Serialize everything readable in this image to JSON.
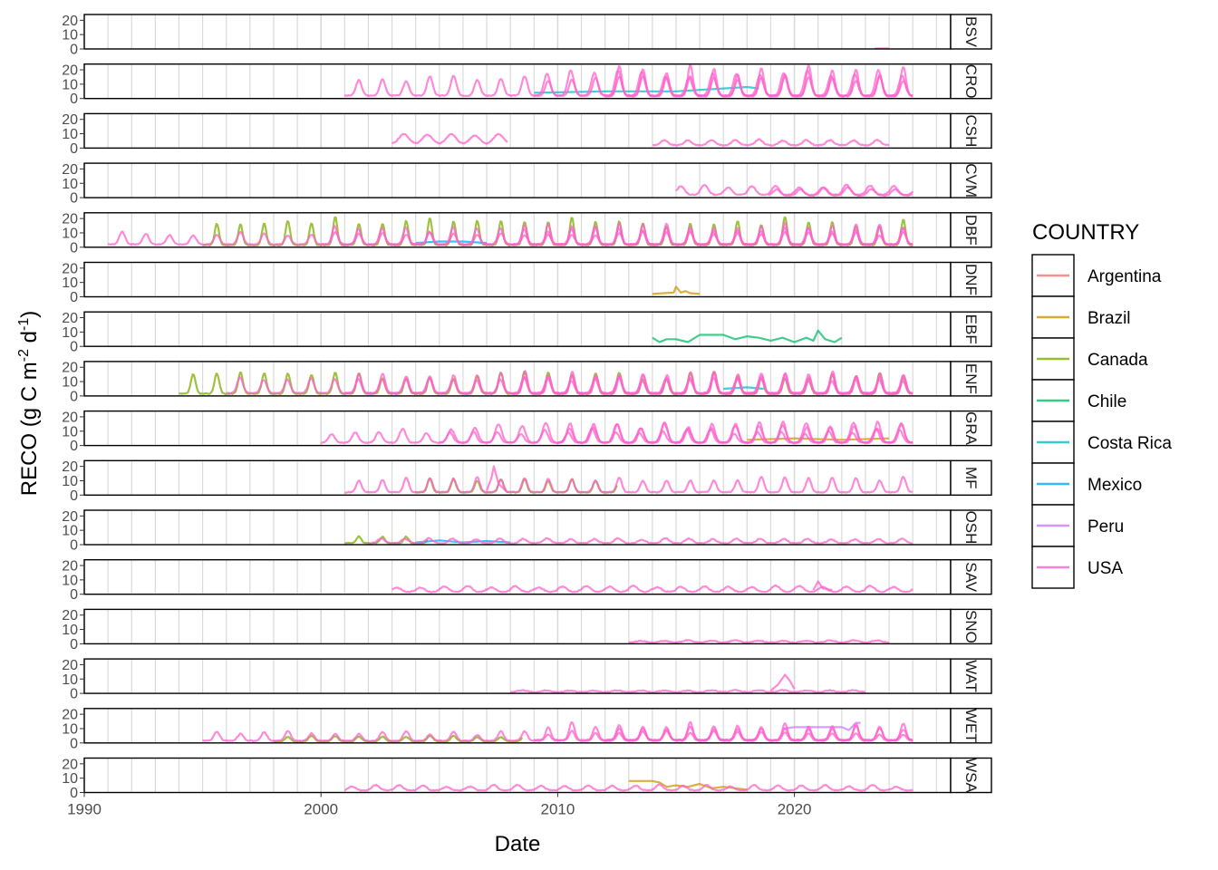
{
  "chart_data": {
    "type": "line",
    "layout": "faceted",
    "xlabel": "Date",
    "ylabel_parts": {
      "main": "RECO (g C m",
      "exp1": "-2",
      "mid": " d",
      "exp2": "-1",
      "end": ")"
    },
    "xlim": [
      1990,
      2026.6
    ],
    "ylim": [
      0,
      24
    ],
    "x_ticks": [
      1990,
      2000,
      2010,
      2020
    ],
    "x_tick_labels": [
      "1990",
      "2000",
      "2010",
      "2020"
    ],
    "y_ticks": [
      0,
      10,
      20
    ],
    "y_tick_labels": [
      "0",
      "10",
      "20"
    ],
    "grid": "vertical",
    "legend": {
      "title": "COUNTRY",
      "position": "right",
      "entries": [
        {
          "name": "Argentina",
          "color": "#F8766D"
        },
        {
          "name": "Brazil",
          "color": "#CD9600"
        },
        {
          "name": "Canada",
          "color": "#7CAE00"
        },
        {
          "name": "Chile",
          "color": "#00BE67"
        },
        {
          "name": "Costa Rica",
          "color": "#00BFC4"
        },
        {
          "name": "Mexico",
          "color": "#00A9FF"
        },
        {
          "name": "Peru",
          "color": "#C77CFF"
        },
        {
          "name": "USA",
          "color": "#FF61CC"
        }
      ]
    },
    "panels": [
      {
        "label": "BSV",
        "series": [
          {
            "country": "USA",
            "points": [
              [
                2023.4,
                0.3
              ],
              [
                2024.0,
                0.3
              ]
            ]
          }
        ]
      },
      {
        "label": "CRO",
        "series": [
          {
            "country": "Costa Rica",
            "points": [
              [
                2009,
                4
              ],
              [
                2012,
                5
              ],
              [
                2015,
                5
              ],
              [
                2016,
                6
              ],
              [
                2017,
                7
              ],
              [
                2018,
                8
              ],
              [
                2018.5,
                7
              ]
            ]
          },
          {
            "country": "USA",
            "seasonal": {
              "start": 2001,
              "end": 2025,
              "base": 2,
              "amp": 10,
              "peak": 0.6,
              "width": 0.12,
              "jitter": 4,
              "seed": 3
            }
          },
          {
            "country": "USA",
            "seasonal": {
              "start": 2009,
              "end": 2025,
              "base": 2,
              "amp": 12,
              "peak": 0.55,
              "width": 0.13,
              "jitter": 6,
              "seed": 7
            }
          },
          {
            "country": "USA",
            "seasonal": {
              "start": 2012,
              "end": 2025,
              "base": 1.5,
              "amp": 14,
              "peak": 0.6,
              "width": 0.11,
              "jitter": 8,
              "seed": 11
            }
          }
        ]
      },
      {
        "label": "CSH",
        "series": [
          {
            "country": "USA",
            "seasonal": {
              "start": 2003,
              "end": 2007.9,
              "base": 3,
              "amp": 5,
              "peak": 0.5,
              "width": 0.2,
              "jitter": 2,
              "seed": 5
            }
          },
          {
            "country": "USA",
            "seasonal": {
              "start": 2014,
              "end": 2024,
              "base": 2,
              "amp": 3,
              "peak": 0.5,
              "width": 0.15,
              "jitter": 1.5,
              "seed": 9
            }
          }
        ]
      },
      {
        "label": "CVM",
        "series": [
          {
            "country": "USA",
            "seasonal": {
              "start": 2015,
              "end": 2025,
              "base": 2,
              "amp": 5,
              "peak": 0.2,
              "width": 0.15,
              "jitter": 2,
              "seed": 13
            }
          },
          {
            "country": "USA",
            "seasonal": {
              "start": 2018.9,
              "end": 2025,
              "base": 1.5,
              "amp": 4,
              "peak": 0.25,
              "width": 0.15,
              "jitter": 2,
              "seed": 17
            }
          }
        ]
      },
      {
        "label": "DBF",
        "series": [
          {
            "country": "Canada",
            "seasonal": {
              "start": 1995,
              "end": 2025,
              "base": 1.5,
              "amp": 13,
              "peak": 0.6,
              "width": 0.09,
              "jitter": 7,
              "seed": 21
            }
          },
          {
            "country": "Mexico",
            "points": [
              [
                2004,
                3
              ],
              [
                2005,
                4
              ],
              [
                2006,
                4
              ],
              [
                2007,
                3
              ]
            ]
          },
          {
            "country": "USA",
            "seasonal": {
              "start": 1991,
              "end": 2025,
              "base": 2,
              "amp": 6,
              "peak": 0.6,
              "width": 0.12,
              "jitter": 3,
              "seed": 23
            }
          },
          {
            "country": "USA",
            "seasonal": {
              "start": 2000,
              "end": 2025,
              "base": 2,
              "amp": 9,
              "peak": 0.58,
              "width": 0.11,
              "jitter": 4,
              "seed": 29
            }
          },
          {
            "country": "USA",
            "seasonal": {
              "start": 2008,
              "end": 2025,
              "base": 2,
              "amp": 11,
              "peak": 0.6,
              "width": 0.1,
              "jitter": 4,
              "seed": 31
            }
          }
        ]
      },
      {
        "label": "DNF",
        "series": [
          {
            "country": "Brazil",
            "points": [
              [
                2014,
                2
              ],
              [
                2014.5,
                2.5
              ],
              [
                2014.9,
                3
              ],
              [
                2015.0,
                7
              ],
              [
                2015.2,
                3
              ],
              [
                2015.4,
                4
              ],
              [
                2015.6,
                2.5
              ],
              [
                2016,
                2
              ]
            ]
          }
        ]
      },
      {
        "label": "EBF",
        "series": [
          {
            "country": "Chile",
            "points": [
              [
                2014,
                6
              ],
              [
                2014.3,
                3
              ],
              [
                2014.6,
                5
              ],
              [
                2015,
                5
              ],
              [
                2015.5,
                3
              ],
              [
                2016,
                8
              ],
              [
                2017,
                8
              ],
              [
                2017.5,
                5
              ],
              [
                2018,
                7
              ],
              [
                2018.5,
                6
              ],
              [
                2019,
                4
              ],
              [
                2019.5,
                6
              ],
              [
                2020,
                3
              ],
              [
                2020.5,
                6
              ],
              [
                2020.8,
                4
              ],
              [
                2021.0,
                11
              ],
              [
                2021.3,
                5
              ],
              [
                2021.7,
                3
              ],
              [
                2022,
                6
              ]
            ]
          }
        ]
      },
      {
        "label": "ENF",
        "series": [
          {
            "country": "Canada",
            "seasonal": {
              "start": 1994,
              "end": 2025,
              "base": 1.5,
              "amp": 9,
              "peak": 0.6,
              "width": 0.1,
              "jitter": 7,
              "seed": 37
            }
          },
          {
            "country": "Costa Rica",
            "points": [
              [
                2017,
                5
              ],
              [
                2018,
                6
              ],
              [
                2018.7,
                5
              ]
            ]
          },
          {
            "country": "USA",
            "seasonal": {
              "start": 1996,
              "end": 2025,
              "base": 2,
              "amp": 8,
              "peak": 0.58,
              "width": 0.12,
              "jitter": 3,
              "seed": 41
            }
          },
          {
            "country": "USA",
            "seasonal": {
              "start": 2001,
              "end": 2025,
              "base": 2,
              "amp": 10,
              "peak": 0.6,
              "width": 0.11,
              "jitter": 5,
              "seed": 43
            }
          },
          {
            "country": "USA",
            "seasonal": {
              "start": 2008,
              "end": 2025,
              "base": 1.5,
              "amp": 11,
              "peak": 0.62,
              "width": 0.1,
              "jitter": 5,
              "seed": 47
            }
          }
        ]
      },
      {
        "label": "GRA",
        "series": [
          {
            "country": "Brazil",
            "points": [
              [
                2018,
                4
              ],
              [
                2020,
                5
              ],
              [
                2022,
                4
              ],
              [
                2024,
                5
              ]
            ]
          },
          {
            "country": "USA",
            "seasonal": {
              "start": 2000,
              "end": 2025,
              "base": 2,
              "amp": 6,
              "peak": 0.45,
              "width": 0.13,
              "jitter": 4,
              "seed": 53
            }
          },
          {
            "country": "USA",
            "seasonal": {
              "start": 2005,
              "end": 2025,
              "base": 2,
              "amp": 9,
              "peak": 0.5,
              "width": 0.14,
              "jitter": 5,
              "seed": 59
            }
          },
          {
            "country": "USA",
            "seasonal": {
              "start": 2010,
              "end": 2025,
              "base": 2,
              "amp": 10,
              "peak": 0.52,
              "width": 0.12,
              "jitter": 5,
              "seed": 61
            }
          }
        ]
      },
      {
        "label": "MF",
        "series": [
          {
            "country": "Canada",
            "seasonal": {
              "start": 2004,
              "end": 2012.5,
              "base": 2,
              "amp": 8,
              "peak": 0.6,
              "width": 0.1,
              "jitter": 2,
              "seed": 67
            }
          },
          {
            "country": "USA",
            "seasonal": {
              "start": 2001,
              "end": 2025,
              "base": 2,
              "amp": 8,
              "peak": 0.6,
              "width": 0.11,
              "jitter": 3,
              "seed": 71
            }
          },
          {
            "country": "USA",
            "points": [
              [
                2007.0,
                3
              ],
              [
                2007.2,
                12
              ],
              [
                2007.3,
                20
              ],
              [
                2007.5,
                8
              ],
              [
                2007.8,
                3
              ]
            ]
          }
        ]
      },
      {
        "label": "OSH",
        "series": [
          {
            "country": "Canada",
            "seasonal": {
              "start": 2001,
              "end": 2004.5,
              "base": 1,
              "amp": 4,
              "peak": 0.6,
              "width": 0.1,
              "jitter": 1,
              "seed": 73
            }
          },
          {
            "country": "Mexico",
            "points": [
              [
                2004,
                1.5
              ],
              [
                2005,
                3
              ],
              [
                2006,
                1.5
              ],
              [
                2007,
                2.5
              ],
              [
                2008,
                1.5
              ]
            ]
          },
          {
            "country": "USA",
            "seasonal": {
              "start": 2002,
              "end": 2025,
              "base": 1,
              "amp": 2.5,
              "peak": 0.55,
              "width": 0.15,
              "jitter": 1,
              "seed": 79
            }
          }
        ]
      },
      {
        "label": "SAV",
        "series": [
          {
            "country": "USA",
            "seasonal": {
              "start": 2003,
              "end": 2025,
              "base": 1.5,
              "amp": 3,
              "peak": 0.2,
              "width": 0.18,
              "jitter": 1.5,
              "seed": 83
            }
          },
          {
            "country": "USA",
            "points": [
              [
                2020.8,
                3
              ],
              [
                2021.0,
                9
              ],
              [
                2021.2,
                4
              ],
              [
                2021.6,
                3
              ]
            ]
          }
        ]
      },
      {
        "label": "SNO",
        "series": [
          {
            "country": "USA",
            "seasonal": {
              "start": 2013,
              "end": 2024,
              "base": 0.8,
              "amp": 1.2,
              "peak": 0.5,
              "width": 0.2,
              "jitter": 0.5,
              "seed": 89
            }
          }
        ]
      },
      {
        "label": "WAT",
        "series": [
          {
            "country": "USA",
            "seasonal": {
              "start": 2008,
              "end": 2023,
              "base": 0.8,
              "amp": 1,
              "peak": 0.5,
              "width": 0.2,
              "jitter": 0.5,
              "seed": 97
            }
          },
          {
            "country": "USA",
            "points": [
              [
                2019.0,
                2
              ],
              [
                2019.3,
                6
              ],
              [
                2019.6,
                13
              ],
              [
                2019.8,
                9
              ],
              [
                2020.0,
                3
              ]
            ]
          }
        ]
      },
      {
        "label": "WET",
        "series": [
          {
            "country": "Canada",
            "seasonal": {
              "start": 1998,
              "end": 2008.5,
              "base": 1,
              "amp": 3,
              "peak": 0.6,
              "width": 0.12,
              "jitter": 1,
              "seed": 101
            }
          },
          {
            "country": "Peru",
            "points": [
              [
                2019.5,
                10
              ],
              [
                2020,
                11
              ],
              [
                2021,
                11
              ],
              [
                2022,
                11
              ],
              [
                2022.3,
                9
              ],
              [
                2022.6,
                14
              ],
              [
                2022.8,
                14
              ]
            ]
          },
          {
            "country": "USA",
            "seasonal": {
              "start": 1995,
              "end": 2025,
              "base": 1.5,
              "amp": 4,
              "peak": 0.6,
              "width": 0.12,
              "jitter": 3,
              "seed": 103
            }
          },
          {
            "country": "USA",
            "seasonal": {
              "start": 2009,
              "end": 2025,
              "base": 2,
              "amp": 8,
              "peak": 0.6,
              "width": 0.11,
              "jitter": 5,
              "seed": 107
            }
          },
          {
            "country": "USA",
            "seasonal": {
              "start": 2012,
              "end": 2025,
              "base": 2,
              "amp": 7,
              "peak": 0.6,
              "width": 0.12,
              "jitter": 4,
              "seed": 109
            }
          }
        ]
      },
      {
        "label": "WSA",
        "series": [
          {
            "country": "Brazil",
            "points": [
              [
                2013,
                8
              ],
              [
                2014,
                8
              ],
              [
                2014.3,
                7
              ],
              [
                2014.6,
                4
              ],
              [
                2015,
                5
              ],
              [
                2015.5,
                4
              ],
              [
                2016,
                6
              ],
              [
                2016.5,
                3
              ],
              [
                2017,
                4
              ],
              [
                2017.5,
                3
              ],
              [
                2018,
                2
              ]
            ]
          },
          {
            "country": "USA",
            "seasonal": {
              "start": 2001,
              "end": 2025,
              "base": 1.5,
              "amp": 2.5,
              "peak": 0.3,
              "width": 0.15,
              "jitter": 1.5,
              "seed": 113
            }
          }
        ]
      }
    ]
  }
}
